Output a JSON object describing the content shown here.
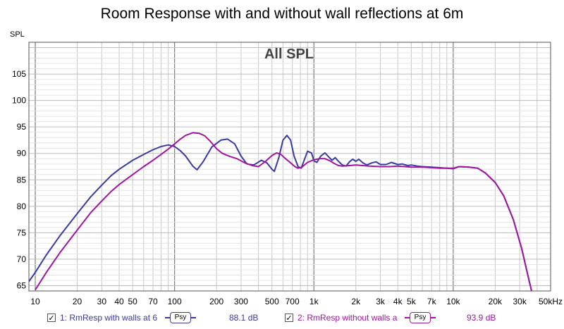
{
  "title": "Room Response with and without wall reflections at 6m",
  "chart_data": {
    "type": "line",
    "title": "Room Response with and without wall reflections at 6m",
    "subtitle": "All SPL",
    "ylabel": "SPL",
    "xlabel": "",
    "xscale": "log",
    "xlim": [
      9,
      50000
    ],
    "ylim": [
      64,
      111
    ],
    "grid": true,
    "y_ticks": [
      65,
      70,
      75,
      80,
      85,
      90,
      95,
      100,
      105
    ],
    "x_tick_labels": [
      {
        "v": 10,
        "t": "10"
      },
      {
        "v": 20,
        "t": "20"
      },
      {
        "v": 30,
        "t": "30"
      },
      {
        "v": 40,
        "t": "40"
      },
      {
        "v": 50,
        "t": "50"
      },
      {
        "v": 70,
        "t": "70"
      },
      {
        "v": 100,
        "t": "100"
      },
      {
        "v": 200,
        "t": "200"
      },
      {
        "v": 300,
        "t": "300"
      },
      {
        "v": 500,
        "t": "500"
      },
      {
        "v": 700,
        "t": "700"
      },
      {
        "v": 1000,
        "t": "1k"
      },
      {
        "v": 2000,
        "t": "2k"
      },
      {
        "v": 3000,
        "t": "3k"
      },
      {
        "v": 4000,
        "t": "4k"
      },
      {
        "v": 5000,
        "t": "5k"
      },
      {
        "v": 7000,
        "t": "7k"
      },
      {
        "v": 10000,
        "t": "10k"
      },
      {
        "v": 20000,
        "t": "20k"
      },
      {
        "v": 30000,
        "t": "30k"
      },
      {
        "v": 50000,
        "t": "50kHz"
      }
    ],
    "series": [
      {
        "name": "1: RmResp with walls at 6",
        "color": "#3a3aa0",
        "points": [
          [
            9,
            65.8
          ],
          [
            10,
            67.5
          ],
          [
            12,
            70.8
          ],
          [
            15,
            74.4
          ],
          [
            20,
            78.6
          ],
          [
            25,
            81.8
          ],
          [
            30,
            84.0
          ],
          [
            35,
            85.8
          ],
          [
            40,
            87.0
          ],
          [
            50,
            88.7
          ],
          [
            60,
            89.8
          ],
          [
            70,
            90.7
          ],
          [
            80,
            91.3
          ],
          [
            90,
            91.6
          ],
          [
            100,
            91.3
          ],
          [
            110,
            90.5
          ],
          [
            120,
            89.5
          ],
          [
            135,
            87.6
          ],
          [
            145,
            86.9
          ],
          [
            160,
            88.4
          ],
          [
            185,
            91.2
          ],
          [
            215,
            92.5
          ],
          [
            240,
            92.7
          ],
          [
            270,
            91.8
          ],
          [
            300,
            89.5
          ],
          [
            330,
            88.0
          ],
          [
            370,
            87.8
          ],
          [
            420,
            88.7
          ],
          [
            460,
            88.2
          ],
          [
            500,
            87.0
          ],
          [
            520,
            86.6
          ],
          [
            560,
            89.2
          ],
          [
            600,
            92.5
          ],
          [
            640,
            93.4
          ],
          [
            680,
            92.5
          ],
          [
            720,
            89.5
          ],
          [
            770,
            87.5
          ],
          [
            810,
            87.2
          ],
          [
            860,
            89.0
          ],
          [
            900,
            90.4
          ],
          [
            960,
            90.1
          ],
          [
            1000,
            88.6
          ],
          [
            1050,
            88.3
          ],
          [
            1120,
            89.5
          ],
          [
            1200,
            90.1
          ],
          [
            1280,
            89.3
          ],
          [
            1350,
            88.7
          ],
          [
            1420,
            89.2
          ],
          [
            1500,
            88.5
          ],
          [
            1600,
            87.8
          ],
          [
            1700,
            87.6
          ],
          [
            1800,
            88.4
          ],
          [
            1900,
            88.9
          ],
          [
            2000,
            88.5
          ],
          [
            2100,
            88.9
          ],
          [
            2250,
            88.2
          ],
          [
            2400,
            87.8
          ],
          [
            2600,
            88.2
          ],
          [
            2800,
            88.4
          ],
          [
            3000,
            87.9
          ],
          [
            3300,
            87.9
          ],
          [
            3600,
            88.3
          ],
          [
            4000,
            87.9
          ],
          [
            4300,
            88.0
          ],
          [
            4700,
            87.7
          ],
          [
            5000,
            87.8
          ],
          [
            5500,
            87.6
          ],
          [
            6000,
            87.5
          ],
          [
            7000,
            87.4
          ],
          [
            8000,
            87.3
          ],
          [
            9000,
            87.2
          ],
          [
            10000,
            87.1
          ],
          [
            11000,
            87.5
          ],
          [
            13000,
            87.4
          ],
          [
            15000,
            87.2
          ],
          [
            17000,
            86.3
          ],
          [
            20000,
            84.5
          ],
          [
            23000,
            82.0
          ],
          [
            27000,
            77.5
          ],
          [
            31000,
            72.0
          ],
          [
            35000,
            66.0
          ],
          [
            36500,
            64.0
          ]
        ]
      },
      {
        "name": "2: RmResp without walls a",
        "color": "#a0169e",
        "points": [
          [
            10,
            64.2
          ],
          [
            12,
            67.5
          ],
          [
            15,
            71.2
          ],
          [
            20,
            75.5
          ],
          [
            25,
            78.8
          ],
          [
            30,
            81.0
          ],
          [
            35,
            82.8
          ],
          [
            40,
            84.1
          ],
          [
            50,
            86.0
          ],
          [
            60,
            87.5
          ],
          [
            70,
            88.7
          ],
          [
            80,
            89.8
          ],
          [
            90,
            90.8
          ],
          [
            100,
            91.8
          ],
          [
            110,
            92.7
          ],
          [
            120,
            93.4
          ],
          [
            135,
            93.9
          ],
          [
            150,
            93.8
          ],
          [
            165,
            93.3
          ],
          [
            180,
            92.3
          ],
          [
            200,
            90.9
          ],
          [
            220,
            90.0
          ],
          [
            250,
            89.4
          ],
          [
            280,
            89.0
          ],
          [
            320,
            88.2
          ],
          [
            360,
            87.7
          ],
          [
            400,
            87.5
          ],
          [
            450,
            88.5
          ],
          [
            500,
            89.6
          ],
          [
            540,
            90.1
          ],
          [
            580,
            89.8
          ],
          [
            620,
            89.1
          ],
          [
            680,
            88.2
          ],
          [
            730,
            87.5
          ],
          [
            770,
            87.2
          ],
          [
            820,
            87.4
          ],
          [
            900,
            88.3
          ],
          [
            1000,
            88.8
          ],
          [
            1100,
            89.0
          ],
          [
            1200,
            89.0
          ],
          [
            1300,
            88.6
          ],
          [
            1400,
            88.1
          ],
          [
            1500,
            87.7
          ],
          [
            1600,
            87.6
          ],
          [
            1800,
            87.7
          ],
          [
            2000,
            87.8
          ],
          [
            2500,
            87.6
          ],
          [
            3000,
            87.5
          ],
          [
            3500,
            87.5
          ],
          [
            4000,
            87.6
          ],
          [
            4500,
            87.5
          ],
          [
            5000,
            87.4
          ],
          [
            6000,
            87.4
          ],
          [
            7000,
            87.3
          ],
          [
            8000,
            87.2
          ],
          [
            9000,
            87.2
          ],
          [
            10000,
            87.2
          ],
          [
            11000,
            87.5
          ],
          [
            13000,
            87.4
          ],
          [
            15000,
            87.2
          ],
          [
            17000,
            86.3
          ],
          [
            20000,
            84.5
          ],
          [
            23000,
            82.0
          ],
          [
            27000,
            77.5
          ],
          [
            31000,
            72.0
          ],
          [
            35000,
            66.0
          ],
          [
            36500,
            64.0
          ]
        ]
      }
    ]
  },
  "legend": {
    "items": [
      {
        "label": "1: RmResp with walls at 6",
        "color": "#3a3aa0",
        "psy": "Psy",
        "value": "88.1 dB",
        "checked": "✓"
      },
      {
        "label": "2: RmResp without walls a",
        "color": "#a0169e",
        "psy": "Psy",
        "value": "93.9 dB",
        "checked": "✓"
      }
    ]
  }
}
